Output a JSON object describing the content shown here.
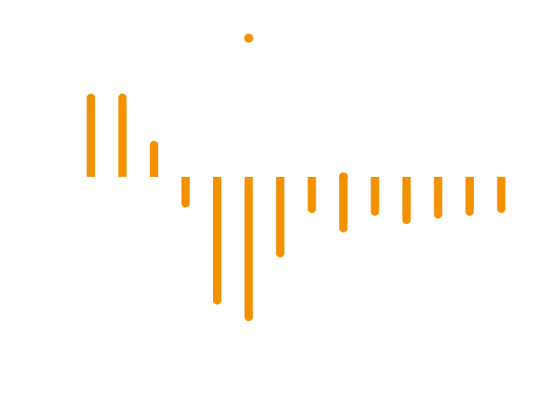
{
  "colors": {
    "background": "#ffffff",
    "bar": "#f39200"
  },
  "chart_data": {
    "type": "bar",
    "style": "rounded lollipop-style bars from a zero baseline, axes hidden",
    "grid": false,
    "legend": "none",
    "ylim": [
      -5.2,
      5.0
    ],
    "values": [
      3.0,
      3.0,
      1.3,
      -1.1,
      -4.6,
      -5.2,
      -2.9,
      -1.3,
      -2.0,
      -1.4,
      -1.7,
      -1.5,
      -1.4,
      -1.3
    ],
    "extra_points": [
      {
        "x": 5.0,
        "y": 5.0
      },
      {
        "x": 8.0,
        "y": 0.0
      }
    ]
  }
}
